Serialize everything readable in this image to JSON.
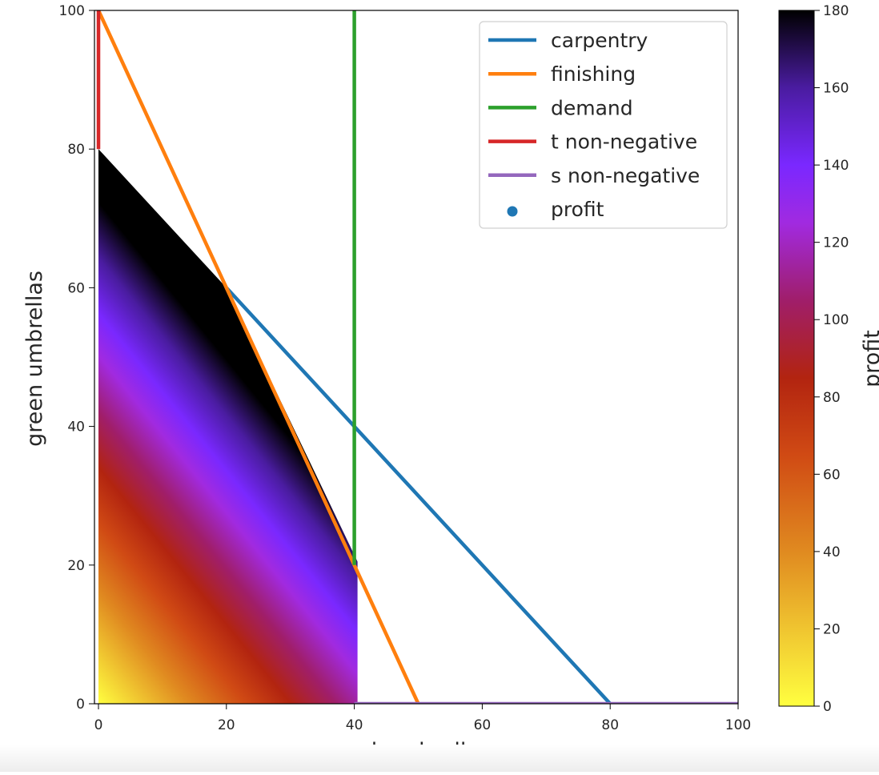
{
  "chart_data": {
    "type": "heatmap",
    "title": "",
    "xlabel": "red umbrellas",
    "ylabel": "green umbrellas",
    "xlim": [
      0,
      100
    ],
    "ylim": [
      0,
      100
    ],
    "xticks": [
      0,
      20,
      40,
      60,
      80,
      100
    ],
    "yticks": [
      0,
      20,
      40,
      60,
      80,
      100
    ],
    "grid": false,
    "legend_position": "top-right",
    "heatmap": {
      "description_of_values": "profit over feasible region",
      "feasible_region": [
        [
          0,
          0
        ],
        [
          40.5,
          0
        ],
        [
          40.5,
          20.5
        ],
        [
          20,
          60
        ],
        [
          0,
          80
        ]
      ],
      "value_formula_coefficients": {
        "red": 3,
        "green": 2.25
      },
      "colormap": "gnuplot2_r",
      "colorbar_label": "profit",
      "colorbar_range": [
        0,
        180
      ],
      "colorbar_ticks": [
        0,
        20,
        40,
        60,
        80,
        100,
        120,
        140,
        160,
        180
      ],
      "colorbar_stops": [
        {
          "v": 0,
          "color": "#ffff40"
        },
        {
          "v": 40,
          "color": "#e08a20"
        },
        {
          "v": 65,
          "color": "#d04a14"
        },
        {
          "v": 85,
          "color": "#b22410"
        },
        {
          "v": 105,
          "color": "#a01e6a"
        },
        {
          "v": 125,
          "color": "#a12ae0"
        },
        {
          "v": 140,
          "color": "#7a28ff"
        },
        {
          "v": 160,
          "color": "#4a1ca0"
        },
        {
          "v": 180,
          "color": "#000000"
        }
      ]
    },
    "series": [
      {
        "name": "carpentry",
        "type": "line",
        "color": "#1f77b4",
        "points": [
          [
            20,
            60
          ],
          [
            80,
            0
          ]
        ]
      },
      {
        "name": "finishing",
        "type": "line",
        "color": "#ff7f0e",
        "points": [
          [
            0,
            100
          ],
          [
            50,
            0
          ]
        ]
      },
      {
        "name": "demand",
        "type": "line",
        "color": "#2ca02c",
        "points": [
          [
            40,
            20
          ],
          [
            40,
            100
          ]
        ]
      },
      {
        "name": "t non-negative",
        "type": "line",
        "color": "#d62728",
        "points": [
          [
            0,
            80
          ],
          [
            0,
            100
          ]
        ]
      },
      {
        "name": "s non-negative",
        "type": "line",
        "color": "#9467bd",
        "points": [
          [
            40,
            0
          ],
          [
            100,
            0
          ]
        ]
      },
      {
        "name": "profit",
        "type": "scatter",
        "color": "#1f77b4"
      }
    ]
  }
}
